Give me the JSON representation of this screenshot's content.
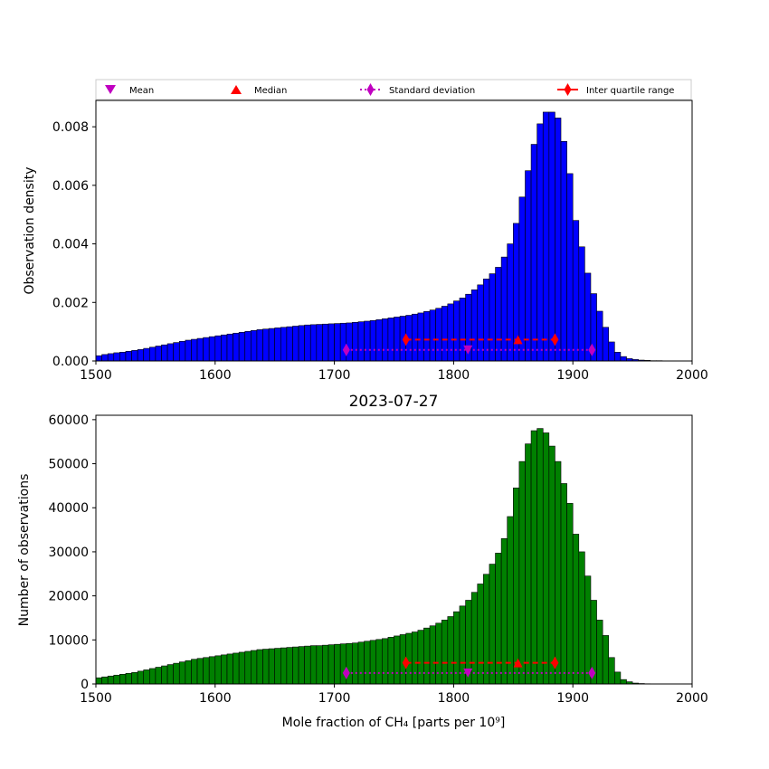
{
  "legend": {
    "entries": [
      {
        "label": "Mean",
        "marker": "triangle-down",
        "color": "#c000c0"
      },
      {
        "label": "Median",
        "marker": "triangle-up",
        "color": "#ff0000"
      },
      {
        "label": "Standard deviation",
        "marker": "diamond-dotted-line",
        "color": "#c000c0"
      },
      {
        "label": "Inter quartile range",
        "marker": "diamond-solid-line",
        "color": "#ff0000"
      }
    ]
  },
  "chart_data": [
    {
      "type": "bar",
      "title": "",
      "xlabel": "",
      "ylabel": "Observation density",
      "xlim": [
        1500,
        2000
      ],
      "ylim": [
        0,
        0.0089
      ],
      "xticks": [
        "1500",
        "1600",
        "1700",
        "1800",
        "1900",
        "2000"
      ],
      "yticks": [
        "0.000",
        "0.002",
        "0.004",
        "0.006",
        "0.008"
      ],
      "bar_color": "#0000ff",
      "bin_start": 1500,
      "bin_width": 5,
      "values": [
        0.00018,
        0.00022,
        0.00025,
        0.00028,
        0.0003,
        0.00033,
        0.00036,
        0.00039,
        0.00043,
        0.00047,
        0.00051,
        0.00055,
        0.00059,
        0.00063,
        0.00067,
        0.00071,
        0.00074,
        0.00077,
        0.0008,
        0.00083,
        0.00086,
        0.00089,
        0.00092,
        0.00095,
        0.00098,
        0.00101,
        0.00104,
        0.00107,
        0.00109,
        0.00111,
        0.00113,
        0.00115,
        0.00117,
        0.00119,
        0.00121,
        0.00123,
        0.00124,
        0.00125,
        0.00126,
        0.00127,
        0.00128,
        0.00129,
        0.0013,
        0.00132,
        0.00134,
        0.00136,
        0.00138,
        0.00141,
        0.00144,
        0.00147,
        0.0015,
        0.00153,
        0.00156,
        0.0016,
        0.00164,
        0.00169,
        0.00174,
        0.0018,
        0.00187,
        0.00195,
        0.00205,
        0.00215,
        0.00228,
        0.00243,
        0.0026,
        0.0028,
        0.00298,
        0.0032,
        0.00355,
        0.004,
        0.0047,
        0.0056,
        0.0065,
        0.0074,
        0.0081,
        0.0085,
        0.0085,
        0.0083,
        0.0075,
        0.0064,
        0.0048,
        0.0039,
        0.003,
        0.0023,
        0.0017,
        0.00115,
        0.00065,
        0.0003,
        0.00015,
        8e-05,
        5e-05,
        3e-05,
        2e-05,
        1e-05,
        1e-05,
        0,
        0,
        0,
        0,
        0
      ],
      "stats": {
        "mean": 1812,
        "median": 1854,
        "std_range": [
          1710,
          1916
        ],
        "iqr_range": [
          1760,
          1885
        ],
        "std_y": 0.00038,
        "iqr_y": 0.00073
      }
    },
    {
      "type": "bar",
      "title": "2023-07-27",
      "xlabel": "Mole fraction of CH₄ [parts per 10⁹]",
      "ylabel": "Number of observations",
      "xlim": [
        1500,
        2000
      ],
      "ylim": [
        0,
        61000
      ],
      "xticks": [
        "1500",
        "1600",
        "1700",
        "1800",
        "1900",
        "2000"
      ],
      "yticks": [
        "0",
        "10000",
        "20000",
        "30000",
        "40000",
        "50000",
        "60000"
      ],
      "bar_color": "#008000",
      "bin_start": 1500,
      "bin_width": 5,
      "values": [
        1400,
        1600,
        1800,
        2000,
        2200,
        2400,
        2600,
        2900,
        3200,
        3500,
        3800,
        4100,
        4400,
        4700,
        5000,
        5300,
        5600,
        5800,
        6000,
        6200,
        6400,
        6600,
        6800,
        7000,
        7200,
        7400,
        7600,
        7800,
        7900,
        8000,
        8100,
        8200,
        8300,
        8400,
        8500,
        8600,
        8700,
        8700,
        8800,
        8900,
        9000,
        9100,
        9200,
        9300,
        9500,
        9700,
        9900,
        10100,
        10300,
        10600,
        10900,
        11200,
        11500,
        11800,
        12200,
        12700,
        13200,
        13800,
        14500,
        15300,
        16400,
        17700,
        19000,
        20800,
        22700,
        24900,
        27200,
        29700,
        33000,
        38000,
        44500,
        50500,
        54500,
        57500,
        58000,
        57000,
        54000,
        50500,
        45500,
        41000,
        34000,
        30000,
        24500,
        19000,
        14500,
        11000,
        6000,
        2700,
        1000,
        500,
        200,
        100,
        50,
        0,
        0,
        0,
        0,
        0,
        0,
        0
      ],
      "stats": {
        "mean": 1812,
        "median": 1854,
        "std_range": [
          1710,
          1916
        ],
        "iqr_range": [
          1760,
          1885
        ],
        "std_y": 2500,
        "iqr_y": 4800
      }
    }
  ]
}
